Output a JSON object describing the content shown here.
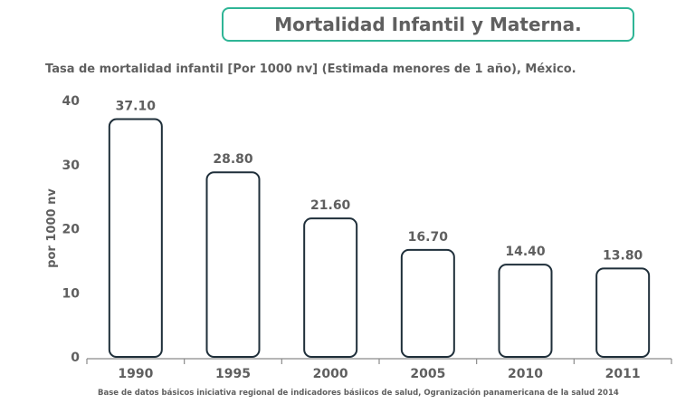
{
  "header": {
    "title": "Mortalidad Infantil y Materna."
  },
  "chart_data": {
    "type": "bar",
    "title": "Tasa de mortalidad infantil [Por 1000 nv] (Estimada menores de 1 año), México.",
    "xlabel": "",
    "ylabel": "por 1000 nv",
    "ylim": [
      0,
      40
    ],
    "yticks": [
      "0",
      "10",
      "20",
      "30",
      "40"
    ],
    "categories": [
      "1990",
      "1995",
      "2000",
      "2005",
      "2010",
      "2011"
    ],
    "values": [
      37.1,
      28.8,
      21.6,
      16.7,
      14.4,
      13.8
    ],
    "value_labels": [
      "37.10",
      "28.80",
      "21.60",
      "16.70",
      "14.40",
      "13.80"
    ],
    "grid": false,
    "bar_fill": "#ffffff",
    "bar_stroke": "#1f2f3a"
  },
  "footer": {
    "source": "Base de datos básicos iniciativa regional de indicadores básiicos  de salud, Ogranización panamericana de la salud 2014"
  },
  "colors": {
    "accent": "#2fb596",
    "text": "#5f5f5f",
    "axis": "#8a8a8a"
  }
}
